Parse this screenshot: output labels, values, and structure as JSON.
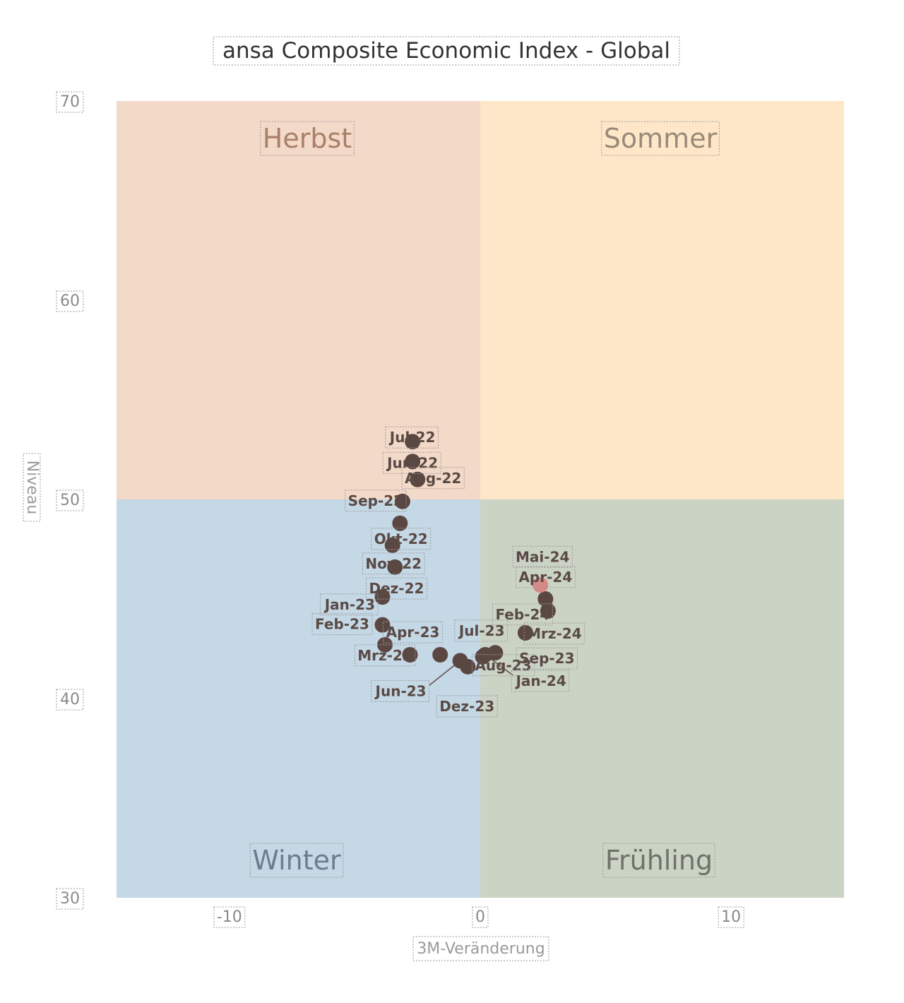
{
  "chart_data": {
    "type": "scatter",
    "title": "ansa Composite Economic Index - Global",
    "xlabel": "3M-Veränderung",
    "ylabel": "Niveau",
    "xlim": [
      -14.5,
      14.5
    ],
    "ylim": [
      30,
      70
    ],
    "x_ticks": [
      "-10",
      "0",
      "10"
    ],
    "y_ticks": [
      "30",
      "40",
      "50",
      "60",
      "70"
    ],
    "x_tick_values": [
      -10,
      0,
      10
    ],
    "y_tick_values": [
      30,
      40,
      50,
      60,
      70
    ],
    "quadrants": [
      {
        "name": "Herbst",
        "x": "negative",
        "y": "above 50",
        "color": "#f3d9c8",
        "text_color": "#a9806a"
      },
      {
        "name": "Sommer",
        "x": "positive",
        "y": "above 50",
        "color": "#fde7c8",
        "text_color": "#9a8a7a"
      },
      {
        "name": "Winter",
        "x": "negative",
        "y": "below 50",
        "color": "#c5d8e6",
        "text_color": "#6d7d8e"
      },
      {
        "name": "Frühling",
        "x": "positive",
        "y": "below 50",
        "color": "#cbd3c5",
        "text_color": "#6e7269"
      }
    ],
    "grid": false,
    "legend": "none",
    "marker_color": "#5b4742",
    "latest_marker_color": "#d97b7b",
    "points": [
      {
        "label": "Jun-22",
        "x": -2.7,
        "y": 51.9
      },
      {
        "label": "Jul-22",
        "x": -2.7,
        "y": 52.9
      },
      {
        "label": "Aug-22",
        "x": -2.5,
        "y": 51.0
      },
      {
        "label": "Sep-22",
        "x": -3.1,
        "y": 49.9
      },
      {
        "label": "Okt-22",
        "x": -3.5,
        "y": 47.7
      },
      {
        "label": "Nov-22",
        "x": -3.4,
        "y": 46.6
      },
      {
        "label": "Dez-22",
        "x": -3.9,
        "y": 45.1
      },
      {
        "label": "Jan-23",
        "x": -3.2,
        "y": 48.8
      },
      {
        "label": "Feb-23",
        "x": -3.9,
        "y": 43.7
      },
      {
        "label": "Mrz-23",
        "x": -3.8,
        "y": 42.7
      },
      {
        "label": "Apr-23",
        "x": -2.8,
        "y": 42.2
      },
      {
        "label": "Jun-23",
        "x": -0.8,
        "y": 41.9
      },
      {
        "label": "Jul-23",
        "x": -1.6,
        "y": 42.2
      },
      {
        "label": "Aug-23",
        "x": 0.1,
        "y": 42.1
      },
      {
        "label": "Sep-23",
        "x": 0.6,
        "y": 42.3
      },
      {
        "label": "Dez-23",
        "x": -0.5,
        "y": 41.6
      },
      {
        "label": "Jan-24",
        "x": 0.2,
        "y": 42.2
      },
      {
        "label": "Feb-24",
        "x": 2.7,
        "y": 44.4
      },
      {
        "label": "Mrz-24",
        "x": 1.8,
        "y": 43.3
      },
      {
        "label": "Apr-24",
        "x": 2.6,
        "y": 45.0
      },
      {
        "label": "Mai-24",
        "x": 2.4,
        "y": 45.7
      }
    ]
  }
}
